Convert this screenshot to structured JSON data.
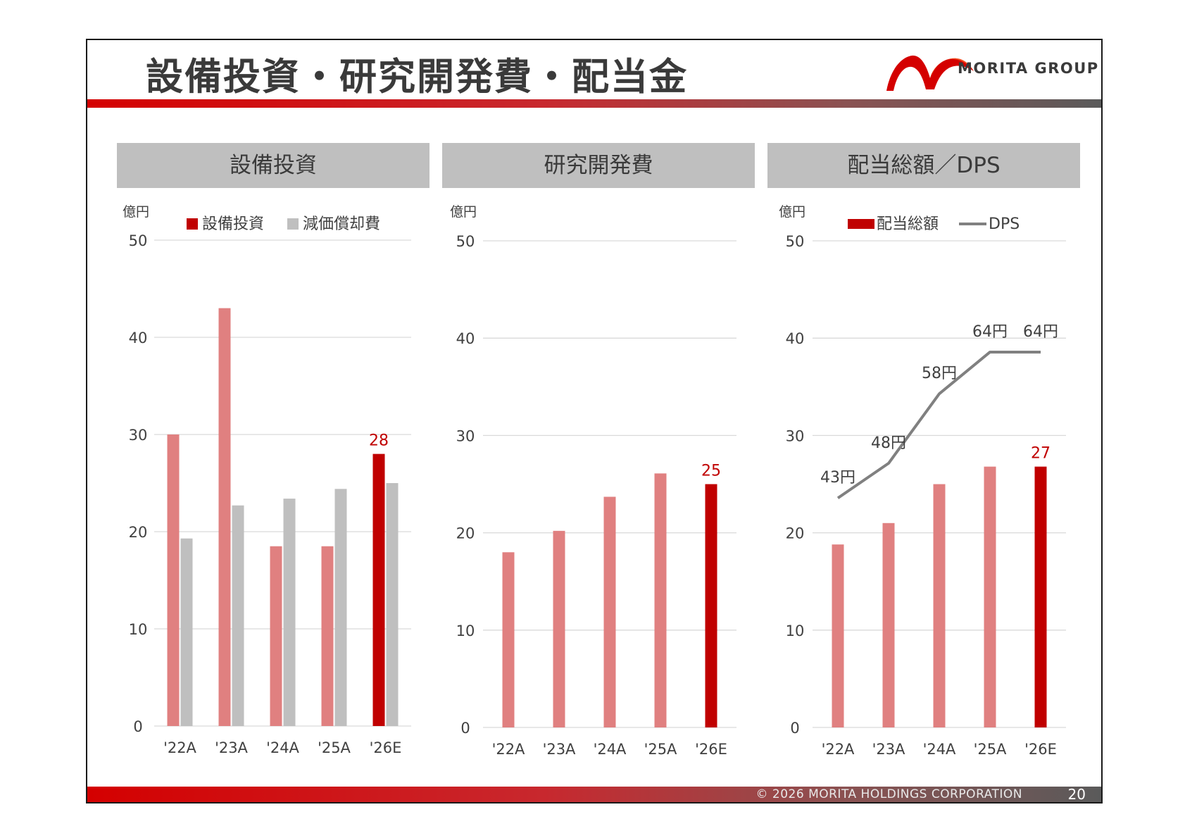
{
  "header": {
    "title": "設備投資・研究開発費・配当金",
    "logo_text": "MORITA GROUP"
  },
  "footer": {
    "copyright": "© 2026 MORITA HOLDINGS CORPORATION",
    "page_number": "20"
  },
  "colors": {
    "bar_light": "#e08080",
    "bar_highlight": "#c00000",
    "bar_gray": "#bfbfbf",
    "line_gray": "#808080",
    "grid": "#d9d9d9",
    "brand_red": "#d40000"
  },
  "chart_data": [
    {
      "type": "bar",
      "panel_title": "設備投資",
      "unit": "億円",
      "categories": [
        "'22A",
        "'23A",
        "'24A",
        "'25A",
        "'26E"
      ],
      "ylim": [
        0,
        50
      ],
      "yticks": [
        0,
        10,
        20,
        30,
        40,
        50
      ],
      "grid": true,
      "legend": "top",
      "series": [
        {
          "name": "設備投資",
          "values": [
            30,
            43,
            18.5,
            18.5,
            28
          ]
        },
        {
          "name": "減価償却費",
          "values": [
            19.3,
            22.7,
            23.4,
            24.4,
            25
          ]
        }
      ],
      "highlight_index": 4,
      "data_labels": [
        {
          "index": 4,
          "text": "28"
        }
      ]
    },
    {
      "type": "bar",
      "panel_title": "研究開発費",
      "unit": "億円",
      "categories": [
        "'22A",
        "'23A",
        "'24A",
        "'25A",
        "'26E"
      ],
      "ylim": [
        0,
        50
      ],
      "yticks": [
        0,
        10,
        20,
        30,
        40,
        50
      ],
      "grid": true,
      "series": [
        {
          "values": [
            18,
            20.2,
            23.7,
            26.1,
            25
          ]
        }
      ],
      "highlight_index": 4,
      "data_labels": [
        {
          "index": 4,
          "text": "25"
        }
      ]
    },
    {
      "type": "bar",
      "panel_title": "配当総額／DPS",
      "unit": "億円",
      "categories": [
        "'22A",
        "'23A",
        "'24A",
        "'25A",
        "'26E"
      ],
      "ylim": [
        0,
        50
      ],
      "yticks": [
        0,
        10,
        20,
        30,
        40,
        50
      ],
      "grid": true,
      "legend": "top",
      "series": [
        {
          "name": "配当総額",
          "values": [
            18.8,
            21,
            25,
            26.8,
            26.8
          ]
        }
      ],
      "line_series": {
        "name": "DPS",
        "values": [
          43,
          48,
          58,
          64,
          64
        ],
        "labels": [
          "43円",
          "48円",
          "58円",
          "64円",
          "64円"
        ]
      },
      "highlight_index": 4,
      "data_labels": [
        {
          "index": 4,
          "text": "27"
        }
      ]
    }
  ]
}
